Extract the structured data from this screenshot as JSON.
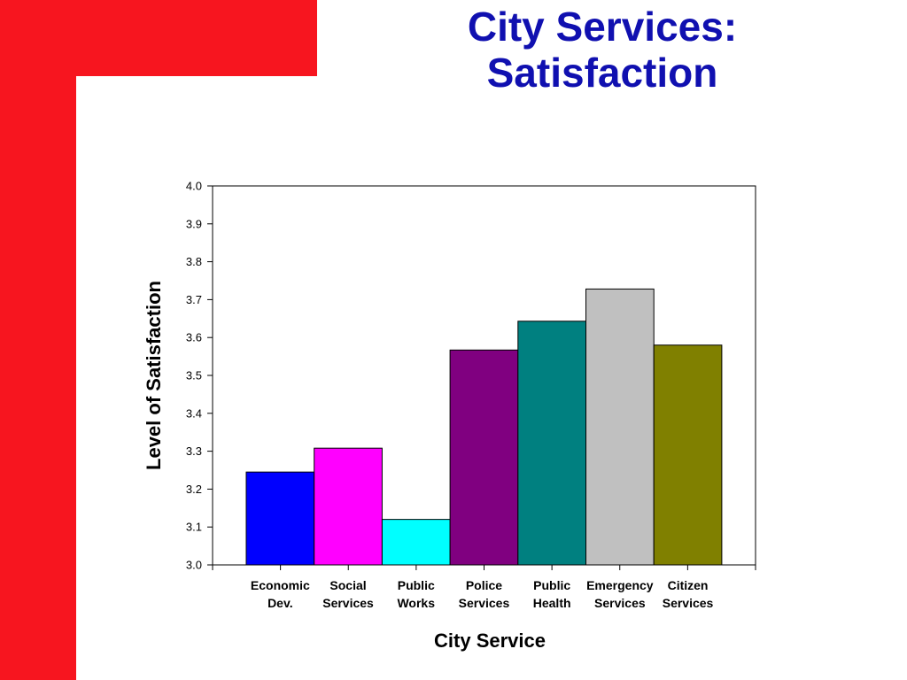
{
  "slide": {
    "title_line1": "City Services:",
    "title_line2": "Satisfaction",
    "accent_color": "#F7151F",
    "title_color": "#1010B0"
  },
  "chart_data": {
    "type": "bar",
    "title": "",
    "xlabel": "City Service",
    "ylabel": "Level of Satisfaction",
    "ylim": [
      3.0,
      4.0
    ],
    "yticks": [
      "3.0",
      "3.1",
      "3.2",
      "3.3",
      "3.4",
      "3.5",
      "3.6",
      "3.7",
      "3.8",
      "3.9",
      "4.0"
    ],
    "grid": false,
    "legend": "none",
    "categories": [
      [
        "Economic",
        "Dev."
      ],
      [
        "Social",
        "Services"
      ],
      [
        "Public",
        "Works"
      ],
      [
        "Police",
        "Services"
      ],
      [
        "Public",
        "Health"
      ],
      [
        "Emergency",
        "Services"
      ],
      [
        "Citizen",
        "Services"
      ]
    ],
    "values": [
      3.245,
      3.308,
      3.12,
      3.567,
      3.643,
      3.728,
      3.58
    ],
    "colors": [
      "#0000FF",
      "#FF00FF",
      "#00FFFF",
      "#800080",
      "#008080",
      "#C0C0C0",
      "#808000"
    ]
  }
}
